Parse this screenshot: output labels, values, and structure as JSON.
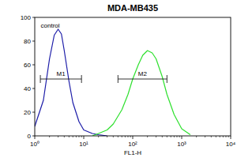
{
  "chart_data": {
    "type": "line",
    "title": "MDA-MB435",
    "x_label": "FL1-H",
    "log": "x",
    "xlim": [
      1,
      10000
    ],
    "xticks": [
      {
        "value": 1,
        "label": "10⁰"
      },
      {
        "value": 10,
        "label": "10¹"
      },
      {
        "value": 100,
        "label": "10²"
      },
      {
        "value": 1000,
        "label": "10³"
      },
      {
        "value": 10000,
        "label": "10⁴"
      }
    ],
    "ylim": [
      0,
      100
    ],
    "yticks": [
      0,
      20,
      40,
      60,
      80,
      100
    ],
    "series": [
      {
        "name": "control",
        "color": "#1c1ca8",
        "x": [
          1,
          1.5,
          2,
          2.5,
          3,
          3.5,
          4,
          5,
          6,
          8,
          10,
          15,
          20,
          30
        ],
        "values": [
          8,
          30,
          65,
          85,
          90,
          86,
          72,
          46,
          28,
          12,
          5,
          2,
          1,
          0
        ]
      },
      {
        "color": "#2ee02e",
        "x": [
          15,
          20,
          30,
          40,
          60,
          80,
          100,
          130,
          160,
          200,
          250,
          300,
          400,
          500,
          700,
          1000,
          1500
        ],
        "values": [
          0,
          2,
          5,
          10,
          22,
          35,
          48,
          60,
          68,
          72,
          70,
          65,
          50,
          35,
          18,
          6,
          1
        ]
      }
    ],
    "gates": [
      {
        "text": "M1",
        "x": [
          1.3,
          9
        ],
        "y": 48
      },
      {
        "text": "M2",
        "x": [
          50,
          500
        ],
        "y": 48
      }
    ]
  }
}
